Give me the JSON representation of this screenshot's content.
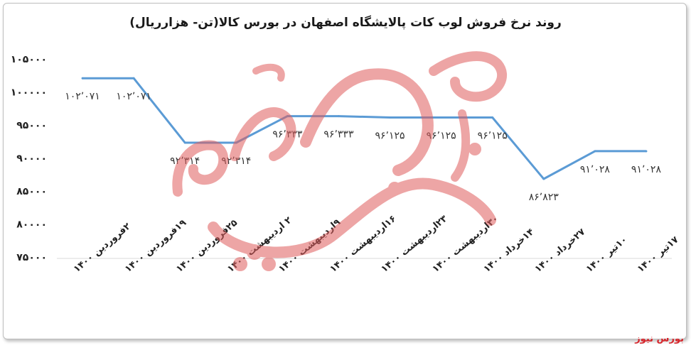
{
  "chart_data": {
    "type": "line",
    "title": "روند نرخ فروش لوب کات پالایشگاه اصفهان در بورس کالا(تن- هزارریال)",
    "categories": [
      "۲فروردین ۱۴۰۰",
      "۱۹فروردین ۱۴۰۰",
      "۲۵فروردین ۱۴۰۰",
      "۲ اردیبهشت ۱۴۰۰",
      "۹اردیبهشت ۱۴۰۰",
      "۱۶اردیبهشت ۱۴۰۰",
      "۲۳اردیبهشت ۱۴۰۰",
      "۳۰اردیبهشت ۱۴۰۰",
      "۱۴خرداد ۱۴۰۰",
      "۲۷خرداد ۱۴۰۰",
      "۱۰تیر ۱۴۰۰",
      "۱۷تیر ۱۴۰۰"
    ],
    "values": [
      102071,
      102071,
      92314,
      92314,
      96333,
      96333,
      96125,
      96125,
      96125,
      86823,
      91028,
      91028
    ],
    "data_labels": [
      "۱۰۲٬۰۷۱",
      "۱۰۲٬۰۷۱",
      "۹۲٬۳۱۴",
      "۹۲٬۳۱۴",
      "۹۶٬۳۳۳",
      "۹۶٬۳۳۳",
      "۹۶٬۱۲۵",
      "۹۶٬۱۲۵",
      "۹۶٬۱۲۵",
      "۸۶٬۸۲۳",
      "۹۱٬۰۲۸",
      "۹۱٬۰۲۸"
    ],
    "yticks": [
      "۷۵۰۰۰",
      "۸۰۰۰۰",
      "۸۵۰۰۰",
      "۹۰۰۰۰",
      "۹۵۰۰۰",
      "۱۰۰۰۰۰",
      "۱۰۵۰۰۰"
    ],
    "ylim": [
      75000,
      105000
    ],
    "xlabel": "",
    "ylabel": "",
    "grid": false,
    "line_color": "#5b9bd5"
  },
  "watermark": {
    "text": "بورس نیوز",
    "color": "#e05d5d"
  },
  "footer": {
    "source": "بورس نیوز"
  }
}
